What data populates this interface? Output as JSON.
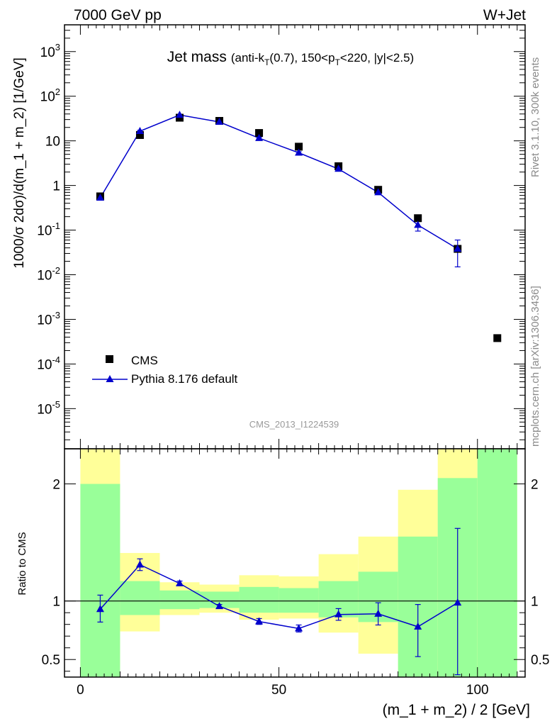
{
  "header": {
    "left": "7000 GeV pp",
    "right": "W+Jet"
  },
  "side_labels": {
    "rivet": "Rivet 3.1.10,  300k events",
    "mcplots": "mcplots.cern.ch [arXiv:1306.3436]"
  },
  "chart_data": [
    {
      "type": "scatter",
      "title_main": "Jet mass",
      "title_detail": "(anti-k_T(0.7), 150<p_T<220, |y|<2.5)",
      "ylabel": "1000/σ 2dσ)/d(m_1 + m_2) [1/GeV]",
      "xlim": [
        -4,
        112
      ],
      "ylim_log10": [
        -5.9,
        3.6
      ],
      "log_y": true,
      "y_tick_labels": [
        "10^3",
        "10^2",
        "10",
        "1",
        "10^-1",
        "10^-2",
        "10^-3",
        "10^-4",
        "10^-5"
      ],
      "legend": {
        "position": "bottom-left",
        "entries": [
          "CMS",
          "Pythia 8.176 default"
        ]
      },
      "watermark": "CMS_2013_I1224539",
      "series": [
        {
          "name": "CMS",
          "color": "#000000",
          "marker": "square",
          "x": [
            5,
            15,
            25,
            35,
            45,
            55,
            65,
            75,
            85,
            95,
            105
          ],
          "y": [
            0.57,
            13.5,
            33,
            28,
            15,
            7.4,
            2.7,
            0.8,
            0.185,
            0.038,
            0.00038
          ]
        },
        {
          "name": "Pythia 8.176 default",
          "color": "#0000cc",
          "marker": "triangle",
          "x": [
            5,
            15,
            25,
            35,
            45,
            55,
            65,
            75,
            85,
            95
          ],
          "y": [
            0.53,
            16.5,
            38,
            26.5,
            11.5,
            5.4,
            2.35,
            0.7,
            0.13,
            0.038
          ],
          "err_low": [
            0.47,
            15.8,
            37,
            25.8,
            11.0,
            5.1,
            2.2,
            0.65,
            0.095,
            0.015
          ],
          "err_high": [
            0.6,
            17.2,
            39,
            27.2,
            12.0,
            5.7,
            2.5,
            0.75,
            0.165,
            0.06
          ]
        }
      ]
    },
    {
      "type": "line",
      "ylabel": "Ratio to CMS",
      "xlabel": "(m_1 + m_2) / 2 [GeV]",
      "xlim": [
        -4,
        112
      ],
      "ylim": [
        0.35,
        2.3
      ],
      "x_tick_labels": [
        "0",
        "50",
        "100"
      ],
      "y_tick_labels": [
        "0.5",
        "1",
        "2"
      ],
      "reference_line": 1,
      "bands": {
        "bin_edges": [
          0,
          10,
          20,
          30,
          40,
          50,
          60,
          70,
          80,
          90,
          100,
          110
        ],
        "green_color": "#99ff99",
        "yellow_color": "#ffff99",
        "green_low": [
          0.35,
          0.88,
          0.93,
          0.94,
          0.9,
          0.9,
          0.86,
          0.82,
          0.35,
          0.35,
          0.35
        ],
        "green_high": [
          2.0,
          1.17,
          1.09,
          1.08,
          1.12,
          1.11,
          1.17,
          1.25,
          1.55,
          2.05,
          2.3
        ],
        "yellow_low": [
          0.35,
          0.74,
          0.88,
          0.9,
          0.84,
          0.85,
          0.73,
          0.55,
          0.35,
          0.35,
          0.35
        ],
        "yellow_high": [
          2.3,
          1.41,
          1.16,
          1.14,
          1.22,
          1.21,
          1.4,
          1.55,
          1.95,
          2.3,
          2.3
        ]
      },
      "series": [
        {
          "name": "Pythia 8.176 default",
          "color": "#0000cc",
          "x": [
            5,
            15,
            25,
            35,
            45,
            55,
            65,
            75,
            85,
            95
          ],
          "y": [
            0.93,
            1.31,
            1.15,
            0.955,
            0.825,
            0.765,
            0.885,
            0.89,
            0.78,
            0.985
          ],
          "err_low": [
            0.82,
            1.26,
            1.13,
            0.94,
            0.8,
            0.735,
            0.835,
            0.795,
            0.525,
            0.37
          ],
          "err_high": [
            1.05,
            1.36,
            1.17,
            0.97,
            0.85,
            0.795,
            0.935,
            0.985,
            0.97,
            1.62
          ]
        }
      ]
    }
  ]
}
